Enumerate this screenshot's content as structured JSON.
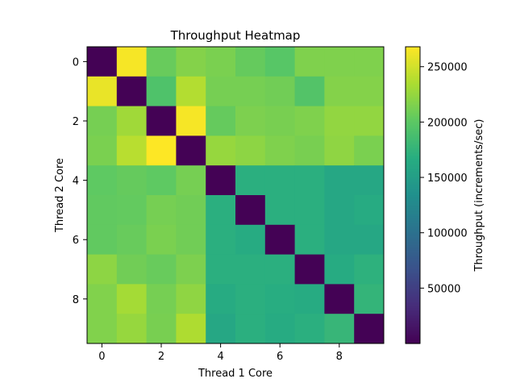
{
  "chart_data": {
    "type": "heatmap",
    "title": "Throughput Heatmap",
    "xlabel": "Thread 1 Core",
    "ylabel": "Thread 2 Core",
    "x_ticks": [
      "0",
      "2",
      "4",
      "6",
      "8"
    ],
    "y_ticks": [
      "0",
      "2",
      "4",
      "6",
      "8"
    ],
    "rows": 10,
    "cols": 10,
    "colormap": "viridis",
    "vmin": 0,
    "vmax": 268000,
    "colorbar": {
      "label": "Throughput (increments/sec)",
      "ticks": [
        {
          "value": 50000,
          "label": "50000"
        },
        {
          "value": 100000,
          "label": "100000"
        },
        {
          "value": 150000,
          "label": "150000"
        },
        {
          "value": 200000,
          "label": "200000"
        },
        {
          "value": 250000,
          "label": "250000"
        }
      ]
    },
    "values": [
      [
        1000,
        265000,
        206000,
        218000,
        214000,
        205000,
        198000,
        216000,
        216000,
        216000
      ],
      [
        260000,
        1000,
        193000,
        238000,
        212000,
        212000,
        210000,
        195000,
        218000,
        218000
      ],
      [
        212000,
        230000,
        1000,
        265000,
        205000,
        215000,
        213000,
        216000,
        224000,
        224000
      ],
      [
        214000,
        240000,
        268000,
        1000,
        226000,
        222000,
        216000,
        213000,
        223000,
        214000
      ],
      [
        202000,
        205000,
        202000,
        212000,
        1000,
        170000,
        170000,
        170000,
        160000,
        160000
      ],
      [
        203000,
        204000,
        212000,
        210000,
        170000,
        1000,
        170000,
        170000,
        160000,
        165000
      ],
      [
        203000,
        206000,
        214000,
        210000,
        170000,
        165000,
        1000,
        170000,
        160000,
        160000
      ],
      [
        222000,
        210000,
        206000,
        215000,
        170000,
        170000,
        170000,
        1000,
        165000,
        172000
      ],
      [
        217000,
        232000,
        212000,
        223000,
        165000,
        170000,
        168000,
        165000,
        1000,
        176000
      ],
      [
        217000,
        226000,
        213000,
        236000,
        160000,
        170000,
        165000,
        170000,
        178000,
        1000
      ]
    ]
  }
}
